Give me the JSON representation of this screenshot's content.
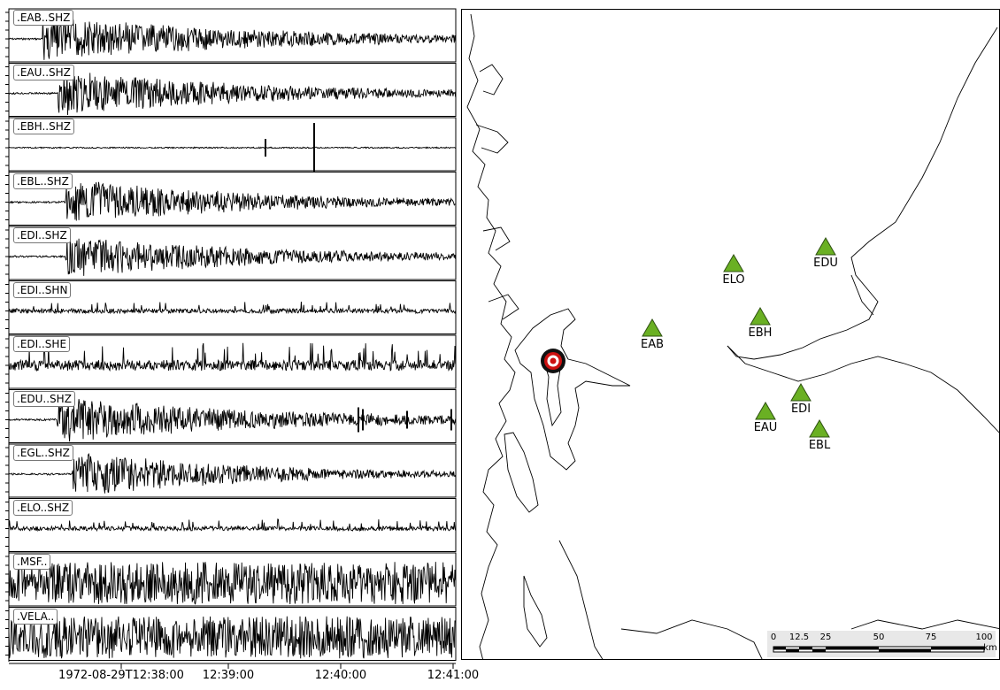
{
  "traces": [
    {
      "label": ".EAB..SHZ"
    },
    {
      "label": ".EAU..SHZ"
    },
    {
      "label": ".EBH..SHZ"
    },
    {
      "label": ".EBL..SHZ"
    },
    {
      "label": ".EDI..SHZ"
    },
    {
      "label": ".EDI..SHN"
    },
    {
      "label": ".EDI..SHE"
    },
    {
      "label": ".EDU..SHZ"
    },
    {
      "label": ".EGL..SHZ"
    },
    {
      "label": ".ELO..SHZ"
    },
    {
      "label": ".MSF.."
    },
    {
      "label": ".VELA.."
    }
  ],
  "time_axis": {
    "labels": [
      "1972-08-29T12:38:00",
      "12:39:00",
      "12:40:00",
      "12:41:00"
    ]
  },
  "map": {
    "stations": [
      {
        "name": "EDU"
      },
      {
        "name": "ELO"
      },
      {
        "name": "EBH"
      },
      {
        "name": "EAB"
      },
      {
        "name": "EDI"
      },
      {
        "name": "EAU"
      },
      {
        "name": "EBL"
      }
    ],
    "station_color": "#6ab023",
    "epicenter_color": "#cc1111",
    "scale_bar": {
      "ticks": [
        "0",
        "12.5",
        "25",
        "50",
        "75",
        "100"
      ],
      "unit": "km"
    }
  }
}
